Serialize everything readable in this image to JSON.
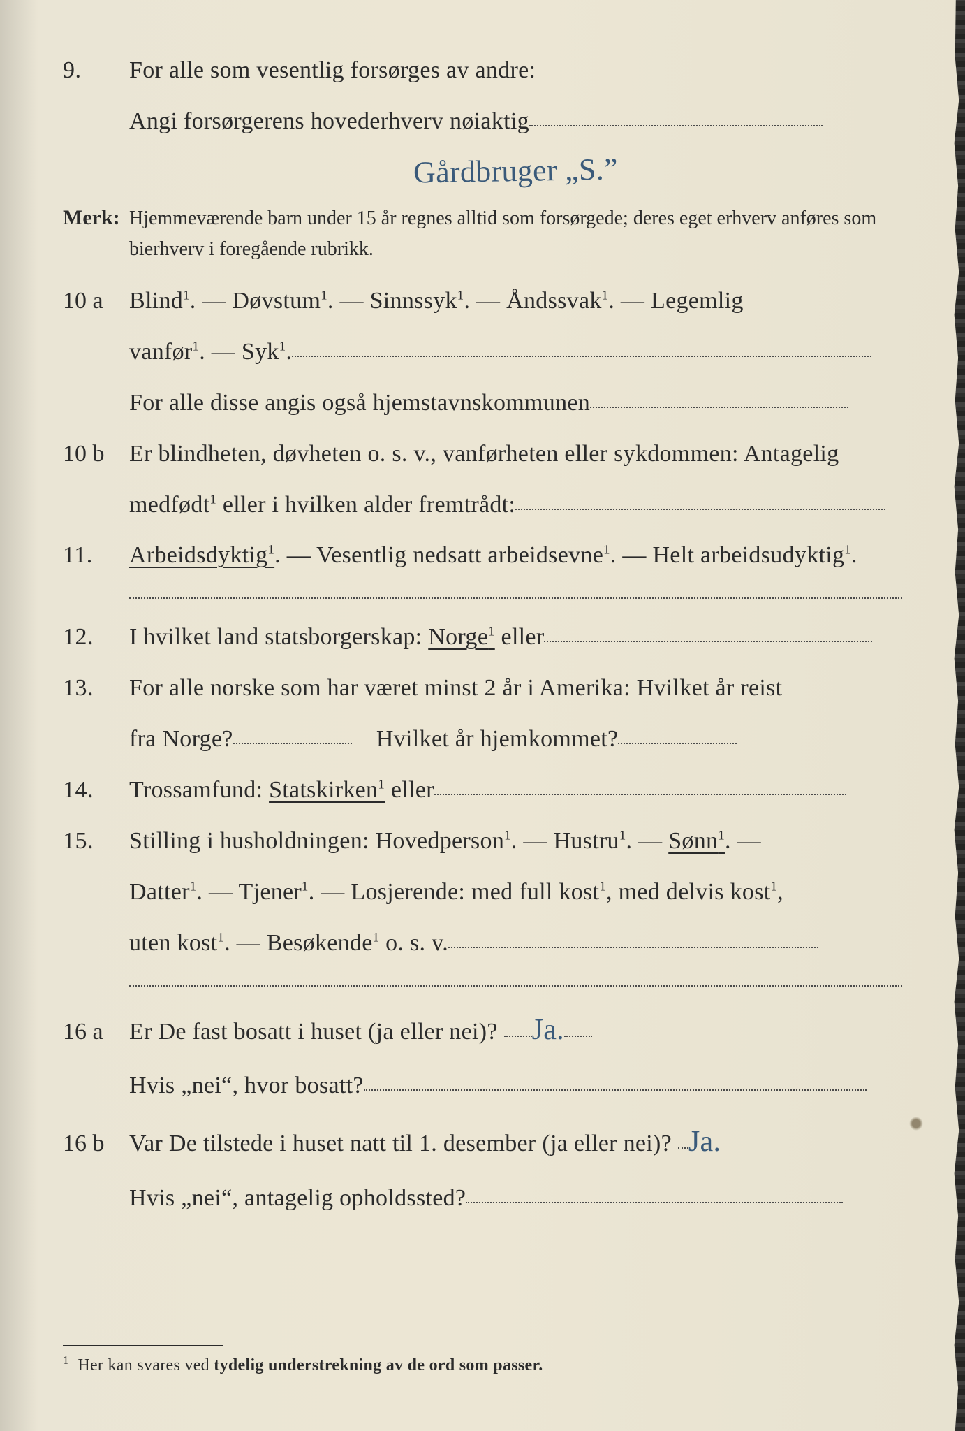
{
  "colors": {
    "paper": "#ebe6d6",
    "ink": "#2b2b2b",
    "handwriting": "#3a5a7a",
    "dotted": "#4a4a4a"
  },
  "typography": {
    "body_fontsize_pt": 25,
    "merk_fontsize_pt": 21,
    "footnote_fontsize_pt": 18,
    "font_family": "serif (old-style, similar to Times)"
  },
  "q9": {
    "num": "9.",
    "line1": "For alle som vesentlig forsørges av andre:",
    "line2_pre": "Angi forsørgerens hovederhverv nøiaktig",
    "handwritten": "Gårdbruger „S.”"
  },
  "merk": {
    "label": "Merk:",
    "text": "Hjemmeværende barn under 15 år regnes alltid som forsørgede; deres eget erhverv anføres som bierhverv i foregående rubrikk."
  },
  "q10a": {
    "num": "10 a",
    "line1": "Blind¹.   —   Døvstum¹.   —   Sinnssyk¹.   —   Åndssvak¹.   —   Legemlig",
    "line2_pre": "vanfør¹.   —   Syk¹.",
    "line3_pre": "For alle disse angis også hjemstavnskommunen"
  },
  "q10b": {
    "num": "10 b",
    "line1": "Er blindheten, døvheten o. s. v., vanførheten eller sykdommen:  Antagelig",
    "line2_pre": "medfødt¹ eller i hvilken alder fremtrådt:"
  },
  "q11": {
    "num": "11.",
    "text_a": "Arbeidsdyktig¹",
    "text_b": ". — Vesentlig nedsatt arbeidsevne¹. — Helt arbeidsudyktig¹."
  },
  "q12": {
    "num": "12.",
    "pre": "I hvilket land statsborgerskap:   ",
    "opt": "Norge¹",
    "post": " eller"
  },
  "q13": {
    "num": "13.",
    "line1": "For alle norske som har været minst 2 år i Amerika:  Hvilket år reist",
    "line2_a": "fra Norge?",
    "line2_b": "Hvilket år hjemkommet?"
  },
  "q14": {
    "num": "14.",
    "pre": "Trossamfund:   ",
    "opt": "Statskirken¹",
    "post": " eller"
  },
  "q15": {
    "num": "15.",
    "line1_pre": "Stilling i husholdningen:   Hovedperson¹.   —   Hustru¹.   —   ",
    "line1_opt": "Sønn¹",
    "line1_post": ".   —",
    "line2": "Datter¹.   —   Tjener¹.   —   Losjerende:   med full kost¹,  med delvis kost¹,",
    "line3_pre": "uten kost¹.   —   Besøkende¹  o. s. v."
  },
  "q16a": {
    "num": "16 a",
    "q": "Er De fast bosatt i huset (ja eller nei)?",
    "ans": "Ja.",
    "sub": "Hvis „nei“, hvor bosatt?"
  },
  "q16b": {
    "num": "16 b",
    "q": "Var De tilstede i huset natt til 1. desember (ja eller nei)?",
    "ans": "Ja.",
    "sub": "Hvis „nei“, antagelig opholdssted?"
  },
  "footnote": {
    "marker": "1",
    "text_a": "Her kan svares ved ",
    "text_b": "tydelig understrekning av de ord som passer."
  }
}
